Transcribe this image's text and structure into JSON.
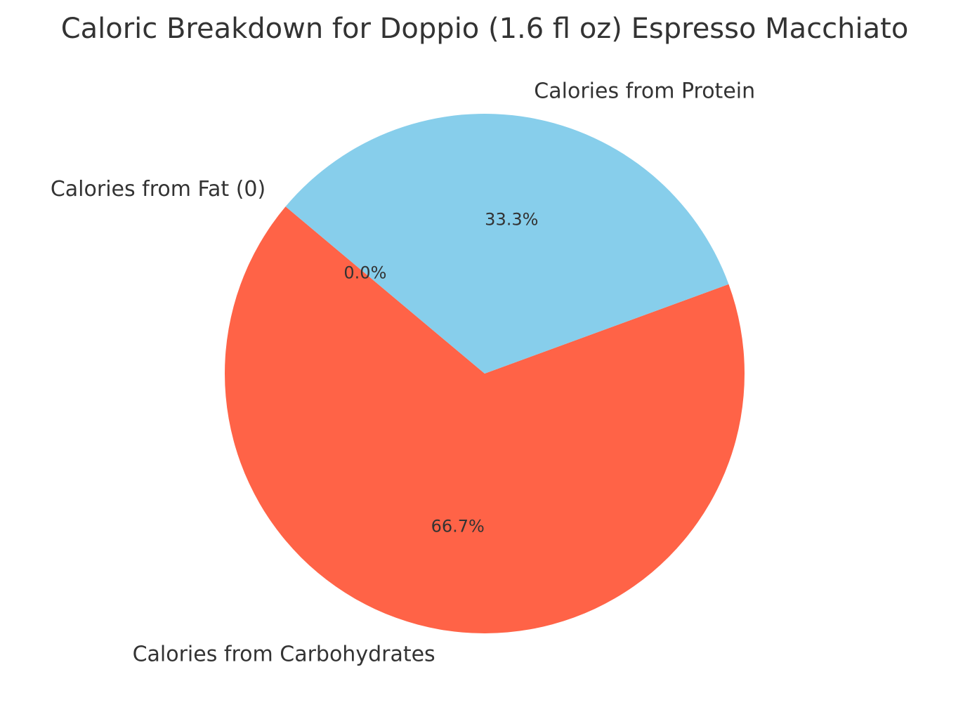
{
  "chart_data": {
    "type": "pie",
    "title": "Caloric Breakdown for Doppio (1.6 fl oz) Espresso Macchiato",
    "slices": [
      {
        "label": "Calories from Fat (0)",
        "value": 0.0,
        "percent_label": "0.0%",
        "color": "#ffcc00"
      },
      {
        "label": "Calories from Carbohydrates",
        "value": 66.7,
        "percent_label": "66.7%",
        "color": "#ff6347"
      },
      {
        "label": "Calories from Protein",
        "value": 33.3,
        "percent_label": "33.3%",
        "color": "#87ceeb"
      }
    ],
    "start_angle_deg": 140,
    "direction": "counterclockwise",
    "legend": "none"
  }
}
